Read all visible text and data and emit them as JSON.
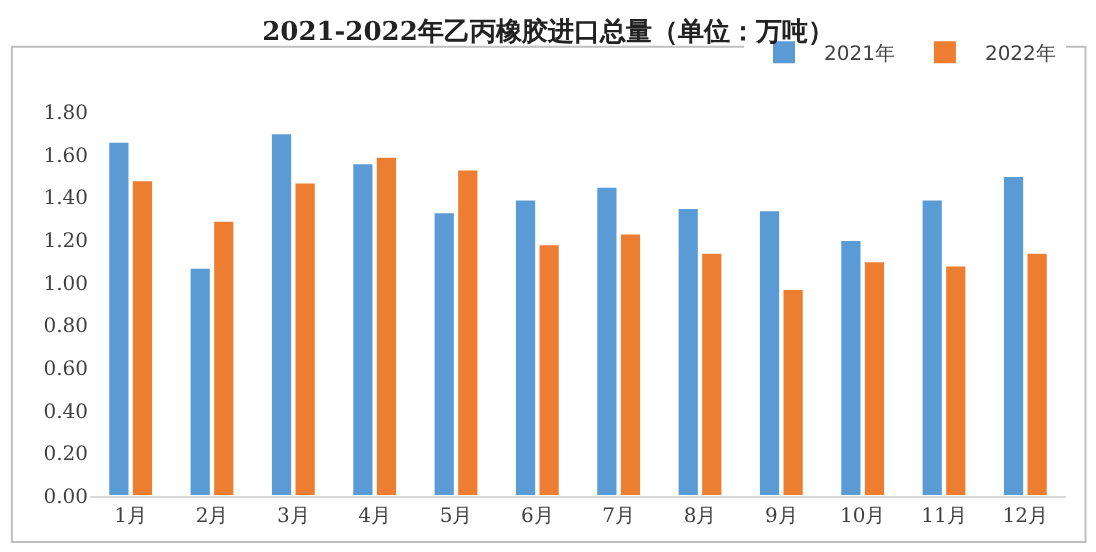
{
  "chart_data": {
    "type": "bar",
    "title": "2021-2022年乙丙橡胶进口总量（单位：万吨）",
    "categories": [
      "1月",
      "2月",
      "3月",
      "4月",
      "5月",
      "6月",
      "7月",
      "8月",
      "9月",
      "10月",
      "11月",
      "12月"
    ],
    "series": [
      {
        "name": "2021年",
        "color": "#5b9bd5",
        "values": [
          1.66,
          1.07,
          1.7,
          1.56,
          1.33,
          1.39,
          1.45,
          1.35,
          1.34,
          1.2,
          1.39,
          1.5
        ]
      },
      {
        "name": "2022年",
        "color": "#ed7d31",
        "values": [
          1.48,
          1.29,
          1.47,
          1.59,
          1.53,
          1.18,
          1.23,
          1.14,
          0.97,
          1.1,
          1.08,
          1.14
        ]
      }
    ],
    "ylim": [
      0,
      1.8
    ],
    "yticks": [
      {
        "value": 0,
        "label": "0.00"
      },
      {
        "value": 0.2,
        "label": "0.20"
      },
      {
        "value": 0.4,
        "label": "0.40"
      },
      {
        "value": 0.6,
        "label": "0.60"
      },
      {
        "value": 0.8,
        "label": "0.80"
      },
      {
        "value": 1.0,
        "label": "1.00"
      },
      {
        "value": 1.2,
        "label": "1.20"
      },
      {
        "value": 1.4,
        "label": "1.40"
      },
      {
        "value": 1.6,
        "label": "1.60"
      },
      {
        "value": 1.8,
        "label": "1.80"
      }
    ],
    "grid": false,
    "legend": "top right"
  }
}
